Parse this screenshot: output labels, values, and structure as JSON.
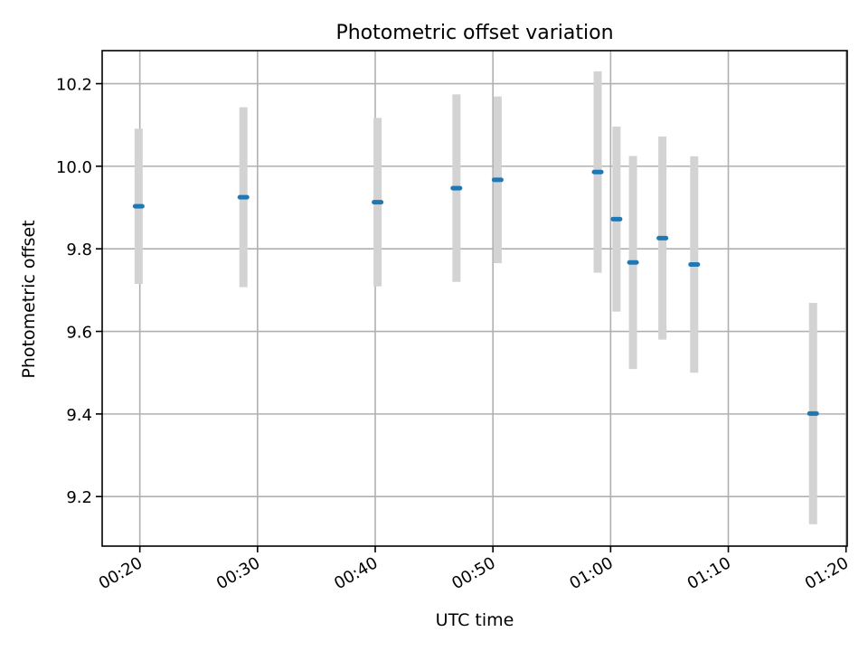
{
  "chart_data": {
    "type": "scatter",
    "title": "Photometric offset variation",
    "xlabel": "UTC time",
    "ylabel": "Photometric offset",
    "x_ticks": [
      "00:20",
      "00:30",
      "00:40",
      "00:50",
      "01:00",
      "01:10",
      "01:20"
    ],
    "x_tick_minutes": [
      20,
      30,
      40,
      50,
      60,
      70,
      80
    ],
    "xlim_minutes": [
      16.8,
      80.1
    ],
    "y_ticks": [
      "9.2",
      "9.4",
      "9.6",
      "9.8",
      "10.0",
      "10.2"
    ],
    "y_tick_values": [
      9.2,
      9.4,
      9.6,
      9.8,
      10.0,
      10.2
    ],
    "ylim": [
      9.08,
      10.28
    ],
    "grid": true,
    "legend": "none",
    "series": [
      {
        "marker_color": "#1f77b4",
        "errorbar_color": "#d3d3d3",
        "points": [
          {
            "t": 19.9,
            "y": 9.903,
            "err": 0.188
          },
          {
            "t": 28.8,
            "y": 9.925,
            "err": 0.218
          },
          {
            "t": 40.2,
            "y": 9.913,
            "err": 0.204
          },
          {
            "t": 46.9,
            "y": 9.947,
            "err": 0.227
          },
          {
            "t": 50.4,
            "y": 9.967,
            "err": 0.202
          },
          {
            "t": 58.9,
            "y": 9.986,
            "err": 0.244
          },
          {
            "t": 60.5,
            "y": 9.872,
            "err": 0.224
          },
          {
            "t": 61.9,
            "y": 9.767,
            "err": 0.258
          },
          {
            "t": 64.4,
            "y": 9.826,
            "err": 0.246
          },
          {
            "t": 67.1,
            "y": 9.762,
            "err": 0.262
          },
          {
            "t": 77.2,
            "y": 9.401,
            "err": 0.268
          }
        ]
      }
    ]
  }
}
